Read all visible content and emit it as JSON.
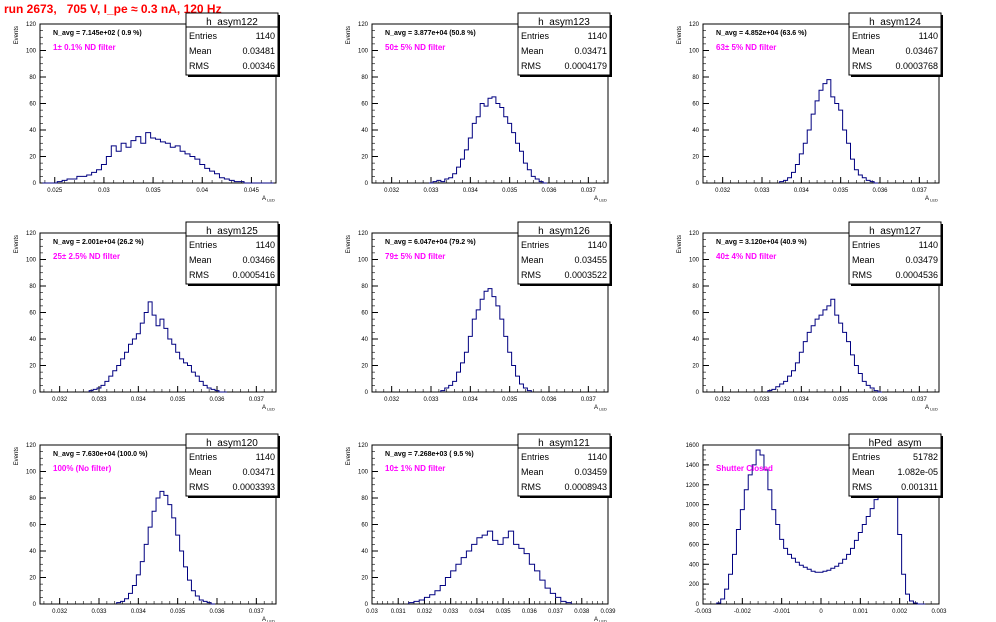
{
  "page": {
    "title": "run 2673,   705 V, I_pe ≈ 0.3 nA, 120 Hz"
  },
  "chart_data": [
    {
      "type": "bar",
      "style": "step",
      "color": "#000080",
      "stats_title": "h_asym122",
      "entries": "1140",
      "mean": "0.03481",
      "rms": "0.00346",
      "avg_label": "N_avg = 7.145e+02 ( 0.9 %)",
      "filter_label": "1± 0.1% ND filter",
      "xlabel": "A",
      "xlabel_sub": "LED",
      "ylabel": "Events",
      "xlim": [
        0.0235,
        0.0475
      ],
      "ylim": [
        0,
        120
      ],
      "xticks": [
        0.025,
        0.03,
        0.035,
        0.04,
        0.045
      ],
      "xtick_labels": [
        "0.025",
        "0.03",
        "0.035",
        "0.04",
        "0.045"
      ],
      "yticks": [
        0,
        20,
        40,
        60,
        80,
        100,
        120
      ],
      "x": [
        0.024,
        0.0245,
        0.025,
        0.0255,
        0.026,
        0.0265,
        0.027,
        0.0275,
        0.028,
        0.0285,
        0.029,
        0.0295,
        0.03,
        0.0305,
        0.031,
        0.0315,
        0.032,
        0.0325,
        0.033,
        0.0335,
        0.034,
        0.0345,
        0.035,
        0.0355,
        0.036,
        0.0365,
        0.037,
        0.0375,
        0.038,
        0.0385,
        0.039,
        0.0395,
        0.04,
        0.0405,
        0.041,
        0.0415,
        0.042,
        0.0425,
        0.043,
        0.0435,
        0.044,
        0.0445,
        0.045,
        0.0455,
        0.046,
        0.0465,
        0.047
      ],
      "values": [
        0,
        0,
        0,
        1,
        2,
        3,
        3,
        5,
        5,
        6,
        8,
        10,
        14,
        20,
        28,
        24,
        30,
        27,
        32,
        35,
        30,
        38,
        34,
        33,
        31,
        30,
        27,
        28,
        24,
        22,
        20,
        18,
        14,
        11,
        9,
        7,
        4,
        3,
        2,
        1,
        1,
        0,
        0,
        0,
        0,
        0,
        0
      ]
    },
    {
      "type": "bar",
      "style": "step",
      "color": "#000080",
      "stats_title": "h_asym123",
      "entries": "1140",
      "mean": "0.03471",
      "rms": "0.0004179",
      "avg_label": "N_avg = 3.877e+04 (50.8 %)",
      "filter_label": "50± 5% ND filter",
      "xlabel": "A",
      "xlabel_sub": "LED",
      "ylabel": "Events",
      "xlim": [
        0.0315,
        0.0375
      ],
      "ylim": [
        0,
        120
      ],
      "xticks": [
        0.032,
        0.033,
        0.034,
        0.035,
        0.036,
        0.037
      ],
      "xtick_labels": [
        "0.032",
        "0.033",
        "0.034",
        "0.035",
        "0.036",
        "0.037"
      ],
      "yticks": [
        0,
        20,
        40,
        60,
        80,
        100,
        120
      ],
      "x": [
        0.033,
        0.0331,
        0.0332,
        0.0333,
        0.0334,
        0.0335,
        0.0336,
        0.0337,
        0.0338,
        0.0339,
        0.034,
        0.0341,
        0.0342,
        0.0343,
        0.0344,
        0.0345,
        0.0346,
        0.0347,
        0.0348,
        0.0349,
        0.035,
        0.0351,
        0.0352,
        0.0353,
        0.0354,
        0.0355,
        0.0356,
        0.0357,
        0.0358,
        0.0359
      ],
      "values": [
        0,
        1,
        2,
        1,
        3,
        4,
        7,
        12,
        18,
        25,
        34,
        45,
        50,
        60,
        58,
        64,
        65,
        60,
        57,
        50,
        45,
        38,
        30,
        24,
        15,
        10,
        5,
        3,
        1,
        0
      ]
    },
    {
      "type": "bar",
      "style": "step",
      "color": "#000080",
      "stats_title": "h_asym124",
      "entries": "1140",
      "mean": "0.03467",
      "rms": "0.0003768",
      "avg_label": "N_avg = 4.852e+04 (63.6 %)",
      "filter_label": "63± 5% ND filter",
      "xlabel": "A",
      "xlabel_sub": "LED",
      "ylabel": "Events",
      "xlim": [
        0.0315,
        0.0375
      ],
      "ylim": [
        0,
        120
      ],
      "xticks": [
        0.032,
        0.033,
        0.034,
        0.035,
        0.036,
        0.037
      ],
      "xtick_labels": [
        "0.032",
        "0.033",
        "0.034",
        "0.035",
        "0.036",
        "0.037"
      ],
      "yticks": [
        0,
        20,
        40,
        60,
        80,
        100,
        120
      ],
      "x": [
        0.0335,
        0.0336,
        0.0337,
        0.0338,
        0.0339,
        0.034,
        0.0341,
        0.0342,
        0.0343,
        0.0344,
        0.0345,
        0.0346,
        0.0347,
        0.0348,
        0.0349,
        0.035,
        0.0351,
        0.0352,
        0.0353,
        0.0354,
        0.0355,
        0.0356,
        0.0357,
        0.0358,
        0.0359
      ],
      "values": [
        1,
        2,
        4,
        8,
        14,
        22,
        30,
        40,
        52,
        62,
        70,
        75,
        78,
        65,
        60,
        55,
        40,
        30,
        18,
        10,
        6,
        4,
        2,
        1,
        0
      ]
    },
    {
      "type": "bar",
      "style": "step",
      "color": "#000080",
      "stats_title": "h_asym125",
      "entries": "1140",
      "mean": "0.03466",
      "rms": "0.0005416",
      "avg_label": "N_avg = 2.001e+04 (26.2 %)",
      "filter_label": "25± 2.5% ND filter",
      "xlabel": "A",
      "xlabel_sub": "LED",
      "ylabel": "Events",
      "xlim": [
        0.0315,
        0.0375
      ],
      "ylim": [
        0,
        120
      ],
      "xticks": [
        0.032,
        0.033,
        0.034,
        0.035,
        0.036,
        0.037
      ],
      "xtick_labels": [
        "0.032",
        "0.033",
        "0.034",
        "0.035",
        "0.036",
        "0.037"
      ],
      "yticks": [
        0,
        20,
        40,
        60,
        80,
        100,
        120
      ],
      "x": [
        0.0328,
        0.0329,
        0.033,
        0.0331,
        0.0332,
        0.0333,
        0.0334,
        0.0335,
        0.0336,
        0.0337,
        0.0338,
        0.0339,
        0.034,
        0.0341,
        0.0342,
        0.0343,
        0.0344,
        0.0345,
        0.0346,
        0.0347,
        0.0348,
        0.0349,
        0.035,
        0.0351,
        0.0352,
        0.0353,
        0.0354,
        0.0355,
        0.0356,
        0.0357,
        0.0358,
        0.0359,
        0.036,
        0.0361,
        0.0362
      ],
      "values": [
        1,
        2,
        3,
        5,
        8,
        12,
        16,
        20,
        25,
        30,
        36,
        40,
        44,
        52,
        60,
        68,
        58,
        50,
        55,
        48,
        40,
        36,
        30,
        25,
        22,
        20,
        15,
        12,
        8,
        5,
        3,
        2,
        1,
        0,
        0
      ]
    },
    {
      "type": "bar",
      "style": "step",
      "color": "#000080",
      "stats_title": "h_asym126",
      "entries": "1140",
      "mean": "0.03455",
      "rms": "0.0003522",
      "avg_label": "N_avg = 6.047e+04 (79.2 %)",
      "filter_label": "79± 5% ND filter",
      "xlabel": "A",
      "xlabel_sub": "LED",
      "ylabel": "Events",
      "xlim": [
        0.0315,
        0.0375
      ],
      "ylim": [
        0,
        120
      ],
      "xticks": [
        0.032,
        0.033,
        0.034,
        0.035,
        0.036,
        0.037
      ],
      "xtick_labels": [
        "0.032",
        "0.033",
        "0.034",
        "0.035",
        "0.036",
        "0.037"
      ],
      "yticks": [
        0,
        20,
        40,
        60,
        80,
        100,
        120
      ],
      "x": [
        0.0333,
        0.0334,
        0.0335,
        0.0336,
        0.0337,
        0.0338,
        0.0339,
        0.034,
        0.0341,
        0.0342,
        0.0343,
        0.0344,
        0.0345,
        0.0346,
        0.0347,
        0.0348,
        0.0349,
        0.035,
        0.0351,
        0.0352,
        0.0353,
        0.0354,
        0.0355
      ],
      "values": [
        1,
        3,
        5,
        8,
        15,
        22,
        30,
        42,
        55,
        62,
        70,
        76,
        78,
        72,
        65,
        55,
        42,
        30,
        20,
        12,
        6,
        3,
        1
      ]
    },
    {
      "type": "bar",
      "style": "step",
      "color": "#000080",
      "stats_title": "h_asym127",
      "entries": "1140",
      "mean": "0.03479",
      "rms": "0.0004536",
      "avg_label": "N_avg = 3.120e+04 (40.9 %)",
      "filter_label": "40± 4% ND filter",
      "xlabel": "A",
      "xlabel_sub": "LED",
      "ylabel": "Events",
      "xlim": [
        0.0315,
        0.0375
      ],
      "ylim": [
        0,
        120
      ],
      "xticks": [
        0.032,
        0.033,
        0.034,
        0.035,
        0.036,
        0.037
      ],
      "xtick_labels": [
        "0.032",
        "0.033",
        "0.034",
        "0.035",
        "0.036",
        "0.037"
      ],
      "yticks": [
        0,
        20,
        40,
        60,
        80,
        100,
        120
      ],
      "x": [
        0.0332,
        0.0333,
        0.0334,
        0.0335,
        0.0336,
        0.0337,
        0.0338,
        0.0339,
        0.034,
        0.0341,
        0.0342,
        0.0343,
        0.0344,
        0.0345,
        0.0346,
        0.0347,
        0.0348,
        0.0349,
        0.035,
        0.0351,
        0.0352,
        0.0353,
        0.0354,
        0.0355,
        0.0356,
        0.0357,
        0.0358,
        0.0359,
        0.036
      ],
      "values": [
        1,
        2,
        4,
        6,
        8,
        12,
        16,
        22,
        30,
        38,
        45,
        50,
        55,
        58,
        62,
        65,
        70,
        58,
        52,
        45,
        38,
        28,
        20,
        14,
        8,
        5,
        3,
        1,
        0
      ]
    },
    {
      "type": "bar",
      "style": "step",
      "color": "#000080",
      "stats_title": "h_asym120",
      "entries": "1140",
      "mean": "0.03471",
      "rms": "0.0003393",
      "avg_label": "N_avg = 7.630e+04 (100.0 %)",
      "filter_label": "100% (No filter)",
      "xlabel": "A",
      "xlabel_sub": "LED",
      "ylabel": "Events",
      "xlim": [
        0.0315,
        0.0375
      ],
      "ylim": [
        0,
        120
      ],
      "xticks": [
        0.032,
        0.033,
        0.034,
        0.035,
        0.036,
        0.037
      ],
      "xtick_labels": [
        "0.032",
        "0.033",
        "0.034",
        "0.035",
        "0.036",
        "0.037"
      ],
      "yticks": [
        0,
        20,
        40,
        60,
        80,
        100,
        120
      ],
      "x": [
        0.0335,
        0.0336,
        0.0337,
        0.0338,
        0.0339,
        0.034,
        0.0341,
        0.0342,
        0.0343,
        0.0344,
        0.0345,
        0.0346,
        0.0347,
        0.0348,
        0.0349,
        0.035,
        0.0351,
        0.0352,
        0.0353,
        0.0354,
        0.0355,
        0.0356,
        0.0357,
        0.0358,
        0.0359
      ],
      "values": [
        1,
        2,
        4,
        8,
        14,
        22,
        32,
        45,
        58,
        70,
        80,
        85,
        82,
        75,
        65,
        52,
        40,
        28,
        18,
        10,
        6,
        3,
        2,
        1,
        0
      ]
    },
    {
      "type": "bar",
      "style": "step",
      "color": "#000080",
      "stats_title": "h_asym121",
      "entries": "1140",
      "mean": "0.03459",
      "rms": "0.0008943",
      "avg_label": "N_avg = 7.268e+03 ( 9.5 %)",
      "filter_label": "10± 1% ND filter",
      "xlabel": "A",
      "xlabel_sub": "LED",
      "ylabel": "Events",
      "xlim": [
        0.03,
        0.039
      ],
      "ylim": [
        0,
        120
      ],
      "xticks": [
        0.03,
        0.031,
        0.032,
        0.033,
        0.034,
        0.035,
        0.036,
        0.037,
        0.038,
        0.039
      ],
      "xtick_labels": [
        "0.03",
        "0.031",
        "0.032",
        "0.033",
        "0.034",
        "0.035",
        "0.036",
        "0.037",
        "0.038",
        "0.039"
      ],
      "yticks": [
        0,
        20,
        40,
        60,
        80,
        100,
        120
      ],
      "x": [
        0.0315,
        0.0317,
        0.0319,
        0.0321,
        0.0323,
        0.0325,
        0.0327,
        0.0329,
        0.0331,
        0.0333,
        0.0335,
        0.0337,
        0.0339,
        0.0341,
        0.0343,
        0.0345,
        0.0347,
        0.0349,
        0.0351,
        0.0353,
        0.0355,
        0.0357,
        0.0359,
        0.0361,
        0.0363,
        0.0365,
        0.0367,
        0.0369,
        0.0371,
        0.0373,
        0.0375
      ],
      "values": [
        1,
        2,
        3,
        5,
        7,
        10,
        14,
        20,
        25,
        30,
        35,
        40,
        45,
        50,
        52,
        55,
        48,
        45,
        50,
        55,
        45,
        42,
        38,
        30,
        25,
        18,
        12,
        8,
        5,
        2,
        1
      ]
    },
    {
      "type": "bar",
      "style": "step",
      "color": "#000080",
      "stats_title": "hPed_asym",
      "entries": "51782",
      "mean": "1.082e-05",
      "rms": "0.001311",
      "avg_label": "",
      "filter_label": "Shutter Closed",
      "xlabel": "",
      "xlabel_sub": "",
      "ylabel": "",
      "xlim": [
        -0.003,
        0.003
      ],
      "ylim": [
        0,
        1600
      ],
      "xticks": [
        -0.003,
        -0.002,
        -0.001,
        0,
        0.001,
        0.002,
        0.003
      ],
      "xtick_labels": [
        "-0.003",
        "-0.002",
        "-0.001",
        "0",
        "0.001",
        "0.002",
        "0.003"
      ],
      "yticks": [
        0,
        200,
        400,
        600,
        800,
        1000,
        1200,
        1400,
        1600
      ],
      "x": [
        -0.0026,
        -0.0025,
        -0.0024,
        -0.0023,
        -0.0022,
        -0.0021,
        -0.002,
        -0.0019,
        -0.0018,
        -0.0017,
        -0.0016,
        -0.0015,
        -0.0014,
        -0.0013,
        -0.0012,
        -0.0011,
        -0.001,
        -0.0009,
        -0.0008,
        -0.0007,
        -0.0006,
        -0.0005,
        -0.0004,
        -0.0003,
        -0.0002,
        -0.0001,
        0.0,
        0.0001,
        0.0002,
        0.0003,
        0.0004,
        0.0005,
        0.0006,
        0.0007,
        0.0008,
        0.0009,
        0.001,
        0.0011,
        0.0012,
        0.0013,
        0.0014,
        0.0015,
        0.0016,
        0.0017,
        0.0018,
        0.0019,
        0.002,
        0.0021,
        0.0022,
        0.0023,
        0.0024,
        0.0025,
        0.0026
      ],
      "values": [
        10,
        50,
        150,
        300,
        500,
        750,
        950,
        1150,
        1300,
        1400,
        1550,
        1500,
        1350,
        1150,
        950,
        800,
        650,
        560,
        500,
        460,
        420,
        390,
        370,
        350,
        330,
        320,
        320,
        330,
        340,
        360,
        380,
        410,
        450,
        500,
        560,
        640,
        720,
        800,
        880,
        960,
        1050,
        1150,
        1300,
        1450,
        1550,
        1200,
        700,
        300,
        100,
        30,
        10,
        0,
        0
      ]
    }
  ]
}
